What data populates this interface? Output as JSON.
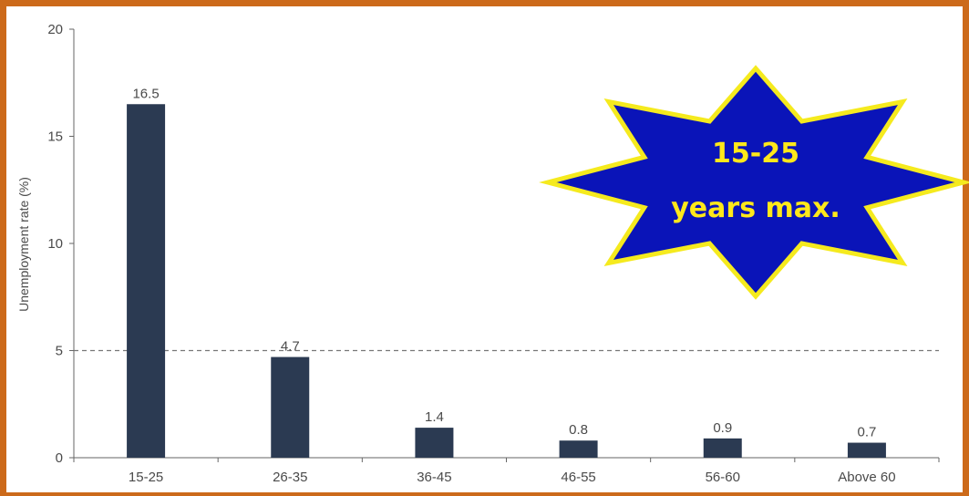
{
  "chart_data": {
    "type": "bar",
    "categories": [
      "15-25",
      "26-35",
      "36-45",
      "46-55",
      "56-60",
      "Above 60"
    ],
    "values": [
      16.5,
      4.7,
      1.4,
      0.8,
      0.9,
      0.7
    ],
    "data_labels": [
      "16.5",
      "4.7",
      "1.4",
      "0.8",
      "0.9",
      "0.7"
    ],
    "title": "",
    "xlabel": "",
    "ylabel": "Unemployment rate (%)",
    "ylim": [
      0,
      20
    ],
    "yticks": [
      0,
      5,
      10,
      15,
      20
    ],
    "reference_line": 5,
    "grid": false,
    "bar_color": "#2b3a52"
  },
  "callout": {
    "line1": "15-25",
    "line2": "years max.",
    "fill_color": "#0a14b8",
    "stroke_color": "#f5ea1e",
    "text_color": "#ffe81a"
  },
  "frame_color": "#cc6a1a"
}
